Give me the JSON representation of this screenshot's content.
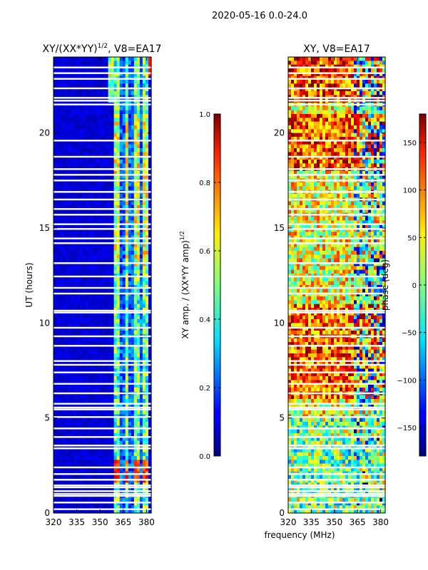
{
  "suptitle": "2020-05-16 0.0-24.0",
  "xlabel_shared": "frequency (MHz)",
  "chart_data": [
    {
      "type": "heatmap",
      "title_main": "XY/(XX*YY)",
      "title_sup": "1/2",
      "title_rest": ", V8=EA17",
      "ylabel": "UT (hours)",
      "xlim": [
        320,
        383
      ],
      "ylim": [
        0,
        24
      ],
      "xticks": [
        "320",
        "335",
        "350",
        "365",
        "380"
      ],
      "xtick_values": [
        320,
        335,
        350,
        365,
        380
      ],
      "yticks": [
        "0",
        "5",
        "10",
        "15",
        "20"
      ],
      "ytick_values": [
        0,
        5,
        10,
        15,
        20
      ],
      "colormap": "jet",
      "colorbar": {
        "label_main": "XY amp. / (XX*YY amp)",
        "label_sup": "1/2",
        "range": [
          0.0,
          1.0
        ],
        "ticks": [
          "0.0",
          "0.2",
          "0.4",
          "0.6",
          "0.8",
          "1.0"
        ],
        "tick_values": [
          0.0,
          0.2,
          0.4,
          0.6,
          0.8,
          1.0
        ]
      },
      "gaps_hours": [
        0.2,
        0.55,
        0.9,
        1.0,
        1.15,
        1.35,
        1.45,
        1.75,
        2.05,
        2.4,
        3.4,
        3.55,
        4.0,
        4.45,
        5.05,
        5.45,
        5.55,
        5.75,
        6.3,
        6.8,
        7.4,
        7.8,
        8.0,
        8.8,
        9.3,
        9.75,
        10.55,
        10.65,
        11.55,
        11.85,
        12.45,
        13.15,
        14.2,
        14.45,
        14.95,
        15.2,
        15.7,
        16.0,
        16.5,
        16.9,
        17.5,
        17.8,
        18.1,
        18.75,
        19.6,
        21.5,
        21.7,
        21.85,
        22.35,
        22.85,
        23.15,
        23.45
      ]
    },
    {
      "type": "heatmap",
      "title": "XY, V8=EA17",
      "xlim": [
        320,
        383
      ],
      "ylim": [
        0,
        24
      ],
      "xticks": [
        "320",
        "335",
        "350",
        "365",
        "380"
      ],
      "xtick_values": [
        320,
        335,
        350,
        365,
        380
      ],
      "yticks": [
        "0",
        "5",
        "10",
        "15",
        "20"
      ],
      "ytick_values": [
        0,
        5,
        10,
        15,
        20
      ],
      "colormap": "jet",
      "colorbar": {
        "label": "phase (deg)",
        "range": [
          -180,
          180
        ],
        "ticks": [
          "150",
          "100",
          "50",
          "0",
          "−50",
          "−100",
          "−150"
        ],
        "tick_values": [
          150,
          100,
          50,
          0,
          -50,
          -100,
          -150
        ]
      },
      "gaps_hours": [
        0.2,
        0.55,
        0.9,
        1.0,
        1.15,
        1.35,
        1.45,
        1.75,
        2.05,
        2.4,
        3.4,
        3.55,
        4.0,
        4.45,
        5.05,
        5.45,
        5.55,
        5.75,
        6.3,
        6.8,
        7.4,
        7.8,
        8.0,
        8.8,
        9.3,
        9.75,
        10.55,
        10.65,
        11.55,
        11.85,
        12.45,
        13.15,
        14.2,
        14.45,
        14.95,
        15.2,
        15.7,
        16.0,
        16.5,
        16.9,
        17.5,
        17.8,
        18.1,
        18.75,
        19.6,
        21.5,
        21.7,
        21.85,
        22.35,
        22.85,
        23.15,
        23.45
      ]
    }
  ]
}
